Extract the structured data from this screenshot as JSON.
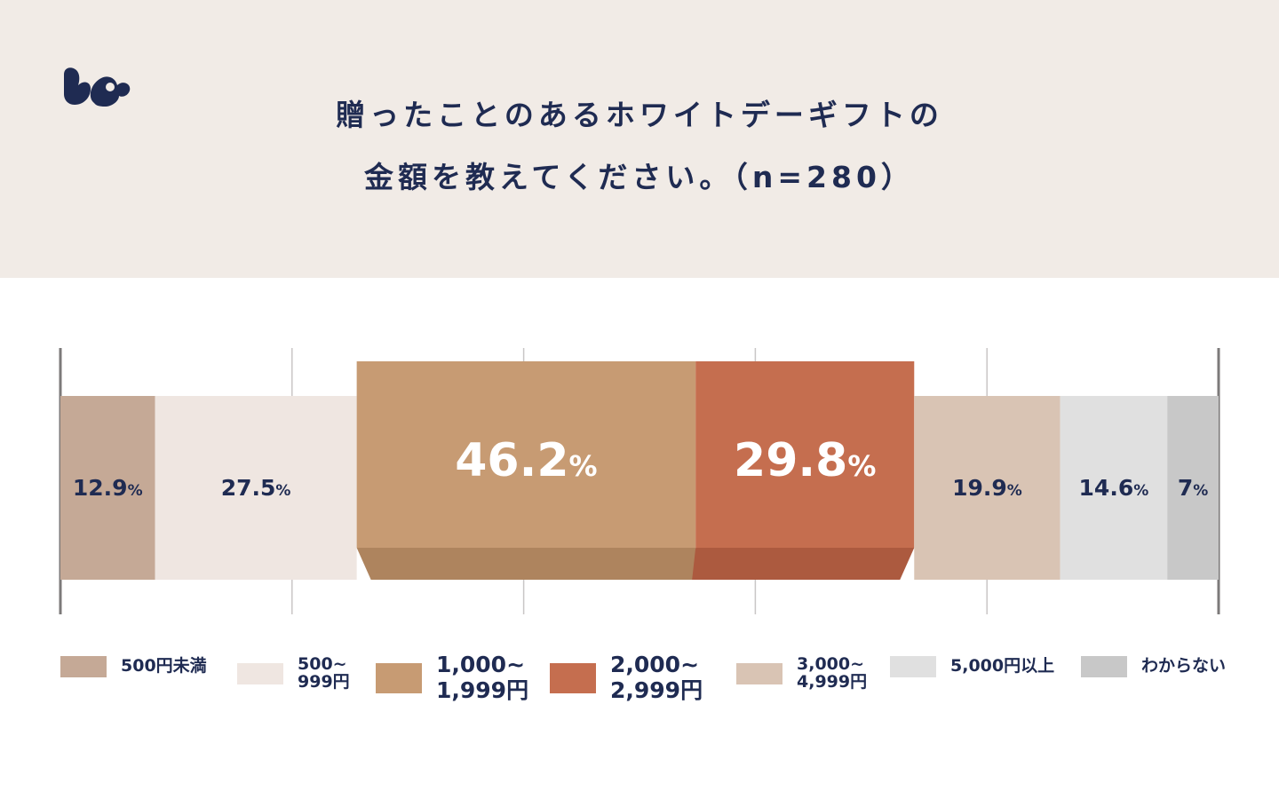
{
  "header": {
    "title_line1": "贈ったことのあるホワイトデーギフトの",
    "title_line2": "金額を教えてください。（n=280）",
    "logo": "squirrel-logo"
  },
  "colors": {
    "header_bg": "#f1ebe6",
    "text": "#1f2b52",
    "grid": "#c9c6c6",
    "axis": "#7c7a7a"
  },
  "chart_data": {
    "type": "bar",
    "orientation": "horizontal-stacked-ribbon",
    "xlim": [
      0,
      100
    ],
    "grid": true,
    "categories": [
      "500円未満",
      "500~\n999円",
      "1,000~\n1,999円",
      "2,000~\n2,999円",
      "3,000~\n4,999円",
      "5,000円以上",
      "わからない"
    ],
    "values": [
      12.9,
      27.5,
      46.2,
      29.8,
      19.9,
      14.6,
      7
    ],
    "value_labels": [
      "12.9",
      "27.5",
      "46.2",
      "29.8",
      "19.9",
      "14.6",
      "7"
    ],
    "unit": "%",
    "highlighted": [
      false,
      false,
      true,
      true,
      false,
      false,
      false
    ],
    "colors": [
      "#c5a996",
      "#efe6e1",
      "#c79b73",
      "#c56e4f",
      "#d9c4b4",
      "#e0e0e0",
      "#c8c8c8"
    ],
    "shade_colors": [
      "",
      "",
      "#ae845e",
      "#ac5a3f",
      "",
      "",
      ""
    ],
    "legend_position": "bottom"
  }
}
